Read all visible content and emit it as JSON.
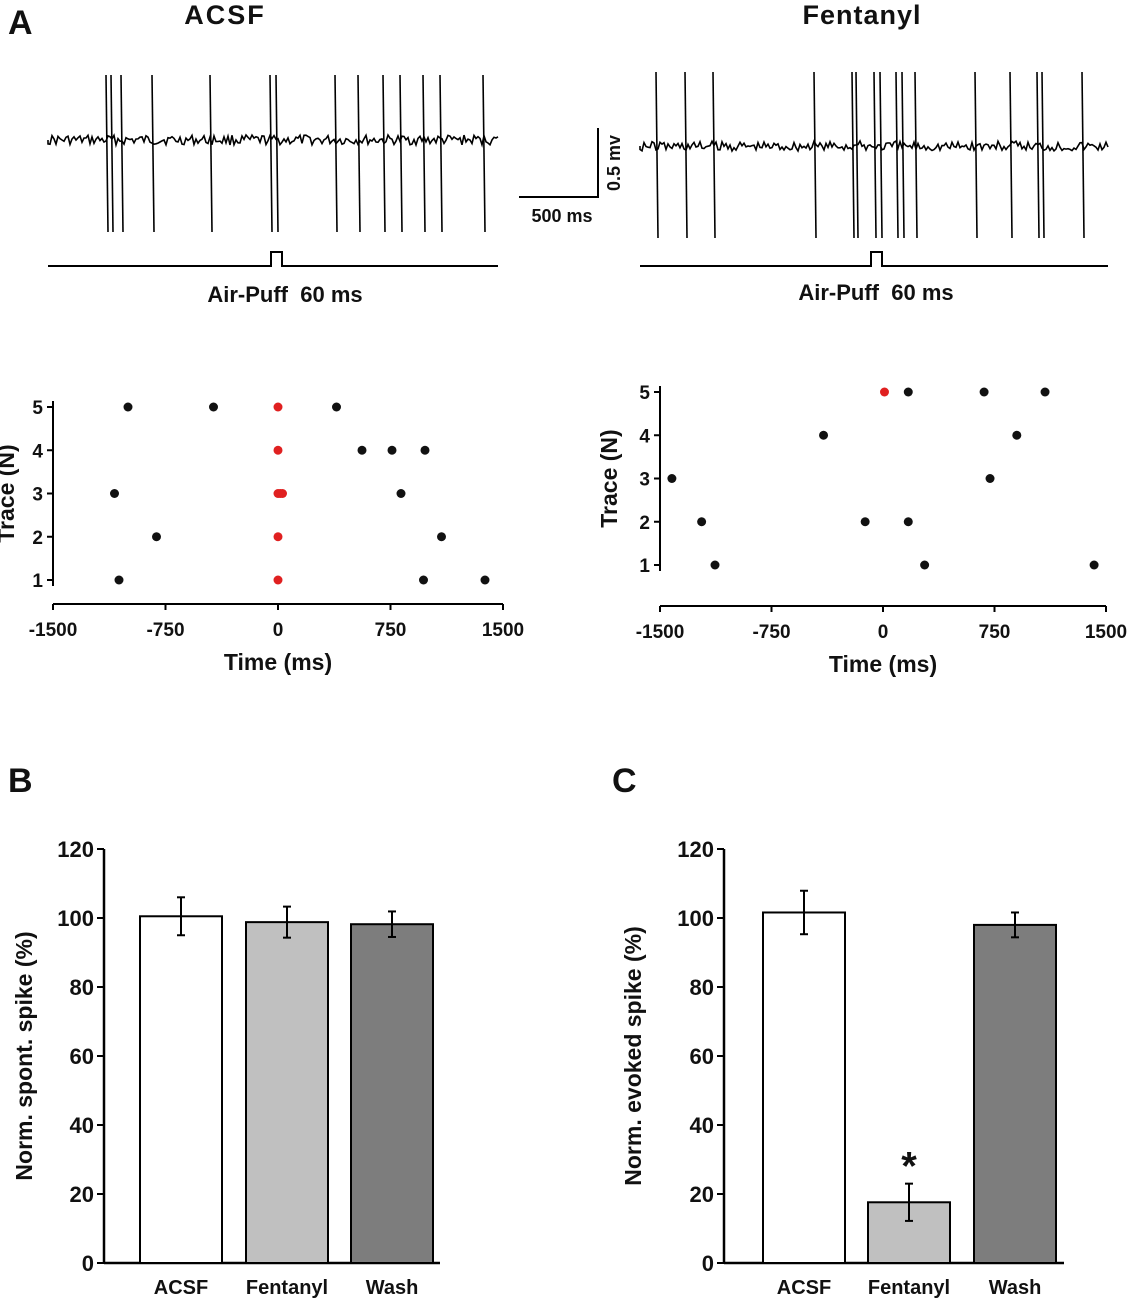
{
  "panel_labels": {
    "a": "A",
    "b": "B",
    "c": "C"
  },
  "traces": {
    "left_title": "ACSF",
    "right_title": "Fentanyl",
    "stimulus_label": "Air-Puff  60 ms",
    "scale_time_label": "500 ms",
    "scale_voltage_label": "0.5 mv"
  },
  "chart_data": [
    {
      "type": "scatter",
      "title": "ACSF",
      "xlabel": "Time (ms)",
      "ylabel": "Trace (N)",
      "xlim": [
        -1500,
        1500
      ],
      "ylim": [
        1,
        5
      ],
      "x_ticks": [
        -1500,
        -750,
        0,
        750,
        1500
      ],
      "y_ticks": [
        1,
        2,
        3,
        4,
        5
      ],
      "series": [
        {
          "name": "spontaneous",
          "color": "#111111",
          "points": [
            [
              -1000,
              5
            ],
            [
              -430,
              5
            ],
            [
              390,
              5
            ],
            [
              560,
              4
            ],
            [
              760,
              4
            ],
            [
              980,
              4
            ],
            [
              -1090,
              3
            ],
            [
              820,
              3
            ],
            [
              -810,
              2
            ],
            [
              1090,
              2
            ],
            [
              -1060,
              1
            ],
            [
              970,
              1
            ],
            [
              1380,
              1
            ]
          ]
        },
        {
          "name": "evoked",
          "color": "#e02020",
          "points": [
            [
              0,
              5
            ],
            [
              0,
              4
            ],
            [
              0,
              3
            ],
            [
              15,
              3
            ],
            [
              30,
              3
            ],
            [
              0,
              2
            ],
            [
              0,
              1
            ]
          ]
        }
      ]
    },
    {
      "type": "scatter",
      "title": "Fentanyl",
      "xlabel": "Time (ms)",
      "ylabel": "Trace (N)",
      "xlim": [
        -1500,
        1500
      ],
      "ylim": [
        1,
        5
      ],
      "x_ticks": [
        -1500,
        -750,
        0,
        750,
        1500
      ],
      "y_ticks": [
        1,
        2,
        3,
        4,
        5
      ],
      "series": [
        {
          "name": "spontaneous",
          "color": "#111111",
          "points": [
            [
              170,
              5
            ],
            [
              680,
              5
            ],
            [
              1090,
              5
            ],
            [
              -400,
              4
            ],
            [
              900,
              4
            ],
            [
              -1420,
              3
            ],
            [
              720,
              3
            ],
            [
              -1220,
              2
            ],
            [
              -120,
              2
            ],
            [
              170,
              2
            ],
            [
              -1130,
              1
            ],
            [
              280,
              1
            ],
            [
              1420,
              1
            ]
          ]
        },
        {
          "name": "evoked",
          "color": "#e02020",
          "points": [
            [
              10,
              5
            ]
          ]
        }
      ]
    },
    {
      "type": "bar",
      "categories": [
        "ACSF",
        "Fentanyl",
        "Wash"
      ],
      "values": [
        100.5,
        98.8,
        98.2
      ],
      "errors": [
        5.5,
        4.5,
        3.7
      ],
      "colors": [
        "#ffffff",
        "#c0c0c0",
        "#7d7d7d"
      ],
      "ylabel": "Norm. spont. spike (%)",
      "xlabel": "",
      "ylim": [
        0,
        120
      ],
      "y_ticks": [
        0,
        20,
        40,
        60,
        80,
        100,
        120
      ],
      "annotations": []
    },
    {
      "type": "bar",
      "categories": [
        "ACSF",
        "Fentanyl",
        "Wash"
      ],
      "values": [
        101.6,
        17.6,
        98.0
      ],
      "errors": [
        6.3,
        5.4,
        3.6
      ],
      "colors": [
        "#ffffff",
        "#c0c0c0",
        "#7d7d7d"
      ],
      "ylabel": "Norm. evoked spike (%)",
      "xlabel": "",
      "ylim": [
        0,
        120
      ],
      "y_ticks": [
        0,
        20,
        40,
        60,
        80,
        100,
        120
      ],
      "annotations": [
        {
          "category": "Fentanyl",
          "text": "*"
        }
      ]
    }
  ]
}
